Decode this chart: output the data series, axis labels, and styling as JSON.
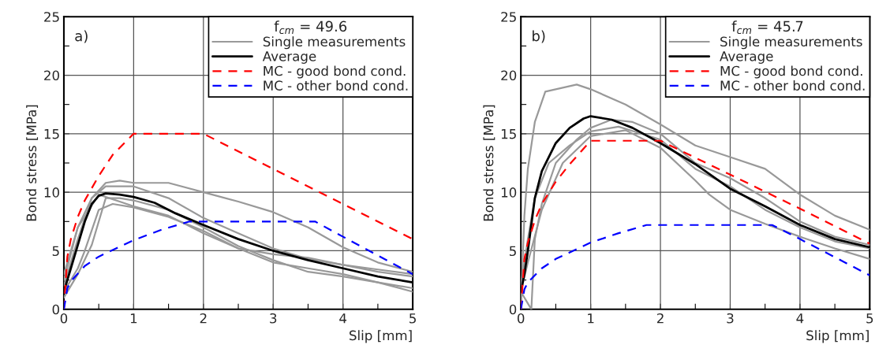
{
  "chart_data": [
    {
      "type": "line",
      "xlabel": "Slip [mm]",
      "ylabel": "Bond stress [MPa]",
      "legend_title": "f$_{cm}$ = 49.6",
      "annotations": [
        "a)"
      ],
      "grid": true,
      "legend": "top right",
      "xlim": [
        0,
        5
      ],
      "ylim": [
        0,
        25
      ],
      "xticks": [
        0,
        {
          "value": 0.5,
          "label": null
        },
        1,
        {
          "value": 1.5,
          "label": null
        },
        2,
        {
          "value": 2.5,
          "label": null
        },
        3,
        {
          "value": 3.5,
          "label": null
        },
        4,
        {
          "value": 4.5,
          "label": null
        },
        5
      ],
      "yticks": [
        0,
        {
          "value": 2.5,
          "label": null
        },
        5,
        {
          "value": 7.5,
          "label": null
        },
        10,
        {
          "value": 12.5,
          "label": null
        },
        15,
        {
          "value": 17.5,
          "label": null
        },
        20,
        {
          "value": 22.5,
          "label": null
        },
        25
      ],
      "series": [
        {
          "name": "Single measurements",
          "color": "#999999",
          "line_style": "solid",
          "x": [
            0,
            0.2,
            0.4,
            0.6,
            0.8,
            1,
            1.5,
            2,
            2.5,
            3,
            3.5,
            4,
            4.5,
            5
          ],
          "values": [
            2,
            6,
            9.5,
            10.8,
            11,
            10.8,
            10.8,
            10,
            9.2,
            8.3,
            7,
            5.3,
            4,
            3.2
          ]
        },
        {
          "color": "#999999",
          "line_style": "solid",
          "x": [
            0,
            0.2,
            0.4,
            0.6,
            1,
            1.5,
            2,
            2.5,
            3,
            3.5,
            4,
            4.5,
            5
          ],
          "values": [
            2.5,
            7,
            9.5,
            10.5,
            10.5,
            9.5,
            7.8,
            6.5,
            5.2,
            4.3,
            3.8,
            3.2,
            2.8
          ]
        },
        {
          "color": "#999999",
          "line_style": "solid",
          "x": [
            0,
            0.2,
            0.5,
            0.8,
            1,
            1.5,
            2,
            2.5,
            3,
            3.5,
            4,
            4.5,
            5
          ],
          "values": [
            3,
            7,
            9.8,
            9.2,
            8.8,
            8,
            6.5,
            5.2,
            4.7,
            4.4,
            3.8,
            3.4,
            3
          ]
        },
        {
          "color": "#999999",
          "line_style": "solid",
          "x": [
            0,
            0.2,
            0.4,
            0.6,
            0.8,
            1,
            1.5,
            2,
            2.5,
            3,
            3.5,
            4,
            4.5,
            5
          ],
          "values": [
            1,
            3,
            5.5,
            9.5,
            9.5,
            9.3,
            8.5,
            7,
            5.4,
            4.2,
            3.2,
            2.8,
            2.3,
            1.8
          ]
        },
        {
          "color": "#999999",
          "line_style": "solid",
          "x": [
            0,
            0.2,
            0.3,
            0.5,
            0.7,
            1,
            1.5,
            2,
            2.5,
            3,
            3.5,
            4,
            4.5,
            5
          ],
          "values": [
            1.5,
            3.5,
            5,
            8.5,
            9,
            8.7,
            7.9,
            6.7,
            5.2,
            4,
            3.5,
            3,
            2.3,
            1.5
          ]
        },
        {
          "name": "Average",
          "color": "#000000",
          "line_style": "solid",
          "x": [
            0,
            0.1,
            0.2,
            0.3,
            0.4,
            0.5,
            0.6,
            0.8,
            1,
            1.3,
            1.6,
            2,
            2.5,
            3,
            3.5,
            4,
            4.5,
            5
          ],
          "values": [
            1.5,
            3.5,
            5.5,
            7.5,
            9,
            9.7,
            9.9,
            9.8,
            9.6,
            9.1,
            8.2,
            7.2,
            6,
            5,
            4.2,
            3.5,
            2.8,
            2.3
          ]
        },
        {
          "name": "MC - good bond cond.",
          "color": "#ff0000",
          "line_style": "dashed",
          "x": [
            0,
            0.05,
            0.1,
            0.2,
            0.3,
            0.5,
            0.7,
            1,
            2,
            3,
            4,
            5
          ],
          "values": [
            0,
            4.5,
            6,
            7.9,
            9.3,
            11.4,
            13.2,
            15,
            15,
            12,
            9,
            6
          ]
        },
        {
          "name": "MC - other bond cond.",
          "color": "#0000ff",
          "line_style": "dashed",
          "x": [
            0,
            0.05,
            0.1,
            0.3,
            0.5,
            1,
            1.4,
            1.8,
            3.6,
            4,
            5
          ],
          "values": [
            0,
            1.8,
            2.4,
            3.7,
            4.5,
            5.9,
            6.8,
            7.5,
            7.5,
            6.2,
            3
          ]
        }
      ]
    },
    {
      "type": "line",
      "xlabel": "Slip [mm]",
      "ylabel": "Bond stress [MPa]",
      "legend_title": "f$_{cm}$ = 45.7",
      "annotations": [
        "b)"
      ],
      "grid": true,
      "legend": "top right",
      "xlim": [
        0,
        5
      ],
      "ylim": [
        0,
        25
      ],
      "xticks": [
        0,
        {
          "value": 0.5,
          "label": null
        },
        1,
        {
          "value": 1.5,
          "label": null
        },
        2,
        {
          "value": 2.5,
          "label": null
        },
        3,
        {
          "value": 3.5,
          "label": null
        },
        4,
        {
          "value": 4.5,
          "label": null
        },
        5
      ],
      "yticks": [
        0,
        {
          "value": 2.5,
          "label": null
        },
        5,
        {
          "value": 7.5,
          "label": null
        },
        10,
        {
          "value": 12.5,
          "label": null
        },
        15,
        {
          "value": 17.5,
          "label": null
        },
        20,
        {
          "value": 22.5,
          "label": null
        },
        25
      ],
      "series": [
        {
          "name": "Single measurements",
          "color": "#999999",
          "line_style": "solid",
          "x": [
            0,
            0.05,
            0.1,
            0.2,
            0.35,
            0.5,
            0.8,
            1,
            1.5,
            2,
            2.5,
            3,
            3.5,
            4,
            4.5,
            5
          ],
          "values": [
            0,
            8,
            12,
            16,
            18.6,
            18.8,
            19.2,
            18.8,
            17.5,
            15.8,
            14,
            13,
            12,
            9.8,
            8,
            6.8
          ]
        },
        {
          "color": "#999999",
          "line_style": "solid",
          "x": [
            0,
            0.1,
            0.15,
            0.2,
            0.3,
            0.5,
            0.8,
            1,
            1.3,
            1.6,
            2,
            2.5,
            3,
            3.5,
            4,
            4.5,
            5
          ],
          "values": [
            1.5,
            0.5,
            0,
            6,
            9,
            12.5,
            14.5,
            15.5,
            16.2,
            16,
            15,
            12.5,
            11.2,
            9.5,
            7.5,
            6.2,
            5.5
          ]
        },
        {
          "color": "#999999",
          "line_style": "solid",
          "x": [
            0,
            0.1,
            0.2,
            0.4,
            0.7,
            1,
            1.4,
            2,
            2.5,
            3,
            3.5,
            4,
            4.5,
            5
          ],
          "values": [
            2,
            6,
            9.5,
            12.5,
            14,
            15.2,
            15.6,
            14.5,
            12,
            10.5,
            8.5,
            7,
            5.8,
            5.2
          ]
        },
        {
          "color": "#999999",
          "line_style": "solid",
          "x": [
            0,
            0.1,
            0.3,
            0.6,
            1,
            1.5,
            2,
            2.5,
            2.7,
            3,
            3.5,
            4,
            4.5,
            5
          ],
          "values": [
            1.5,
            4,
            8.5,
            12.5,
            14.8,
            15.3,
            13.8,
            11,
            9.8,
            8.5,
            7.3,
            6.2,
            5.2,
            4.3
          ]
        },
        {
          "name": "Average",
          "color": "#000000",
          "line_style": "solid",
          "x": [
            0,
            0.05,
            0.1,
            0.2,
            0.3,
            0.5,
            0.7,
            0.9,
            1,
            1.3,
            1.6,
            2,
            2.5,
            3,
            3.5,
            4,
            4.5,
            5
          ],
          "values": [
            1.5,
            3,
            5,
            9.5,
            11.8,
            14.2,
            15.5,
            16.3,
            16.5,
            16.2,
            15.5,
            14.2,
            12.4,
            10.3,
            8.8,
            7.2,
            6,
            5.3
          ]
        },
        {
          "name": "MC - good bond cond.",
          "color": "#ff0000",
          "line_style": "dashed",
          "x": [
            0,
            0.05,
            0.1,
            0.2,
            0.3,
            0.5,
            0.7,
            1,
            2,
            3,
            4,
            5
          ],
          "values": [
            0,
            4.3,
            5.7,
            7.6,
            9,
            10.9,
            12.4,
            14.4,
            14.4,
            11.5,
            8.6,
            5.6
          ]
        },
        {
          "name": "MC - other bond cond.",
          "color": "#0000ff",
          "line_style": "dashed",
          "x": [
            0,
            0.05,
            0.1,
            0.3,
            0.5,
            1,
            1.4,
            1.8,
            3.6,
            4,
            5
          ],
          "values": [
            0,
            1.7,
            2.3,
            3.5,
            4.3,
            5.7,
            6.5,
            7.2,
            7.2,
            6,
            2.9
          ]
        }
      ]
    }
  ]
}
